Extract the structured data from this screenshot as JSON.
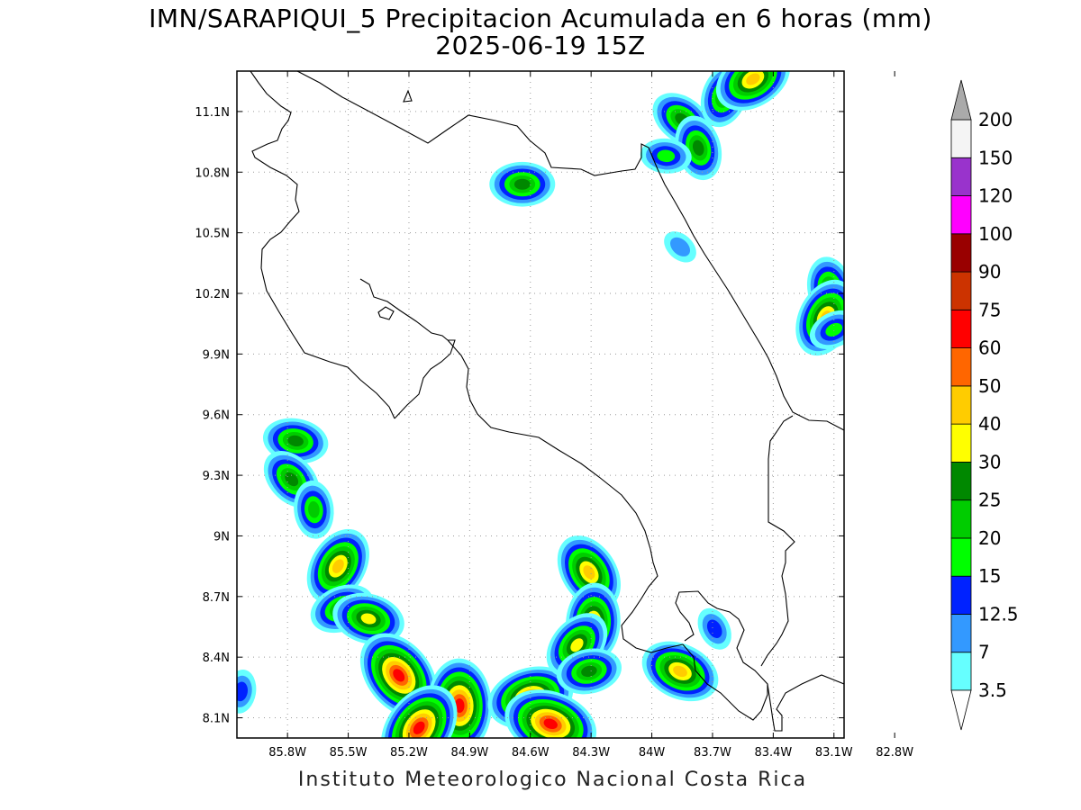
{
  "title": {
    "line1": "IMN/SARAPIQUI_5 Precipitacion Acumulada en 6 horas (mm)",
    "line2": "2025-06-19 15Z"
  },
  "footer": "Instituto Meteorologico Nacional Costa Rica",
  "map": {
    "lon_range": [
      -86.05,
      -83.05
    ],
    "lat_range": [
      8.0,
      11.3
    ],
    "lon_ticks": [
      {
        "value": -85.8,
        "label": "85.8W"
      },
      {
        "value": -85.5,
        "label": "85.5W"
      },
      {
        "value": -85.2,
        "label": "85.2W"
      },
      {
        "value": -84.9,
        "label": "84.9W"
      },
      {
        "value": -84.6,
        "label": "84.6W"
      },
      {
        "value": -84.3,
        "label": "84.3W"
      },
      {
        "value": -84.0,
        "label": "84W"
      },
      {
        "value": -83.7,
        "label": "83.7W"
      },
      {
        "value": -83.4,
        "label": "83.4W"
      },
      {
        "value": -83.1,
        "label": "83.1W"
      },
      {
        "value": -82.8,
        "label": "82.8W"
      }
    ],
    "lat_ticks": [
      {
        "value": 8.1,
        "label": "8.1N"
      },
      {
        "value": 8.4,
        "label": "8.4N"
      },
      {
        "value": 8.7,
        "label": "8.7N"
      },
      {
        "value": 9.0,
        "label": "9N"
      },
      {
        "value": 9.3,
        "label": "9.3N"
      },
      {
        "value": 9.6,
        "label": "9.6N"
      },
      {
        "value": 9.9,
        "label": "9.9N"
      },
      {
        "value": 10.2,
        "label": "10.2N"
      },
      {
        "value": 10.5,
        "label": "10.5N"
      },
      {
        "value": 10.8,
        "label": "10.8N"
      },
      {
        "value": 11.1,
        "label": "11.1N"
      }
    ],
    "grid": true
  },
  "colorbar": {
    "levels": [
      {
        "label": "3.5",
        "color": "#66ffff"
      },
      {
        "label": "7",
        "color": "#3399ff"
      },
      {
        "label": "12.5",
        "color": "#0022ff"
      },
      {
        "label": "15",
        "color": "#00ff00"
      },
      {
        "label": "20",
        "color": "#00cc00"
      },
      {
        "label": "25",
        "color": "#008800"
      },
      {
        "label": "30",
        "color": "#ffff00"
      },
      {
        "label": "40",
        "color": "#ffcc00"
      },
      {
        "label": "50",
        "color": "#ff6600"
      },
      {
        "label": "60",
        "color": "#ff0000"
      },
      {
        "label": "75",
        "color": "#cc3300"
      },
      {
        "label": "90",
        "color": "#990000"
      },
      {
        "label": "100",
        "color": "#ff00ff"
      },
      {
        "label": "120",
        "color": "#9933cc"
      },
      {
        "label": "150",
        "color": "#f4f4f4"
      },
      {
        "label": "200",
        "color": "#aaaaaa"
      }
    ]
  },
  "chart_data": {
    "type": "heatmap",
    "variable": "accumulated precipitation 6h (mm)",
    "cells": [
      {
        "lon": -84.64,
        "lat": 10.74,
        "max_mm": 25
      },
      {
        "lon": -83.85,
        "lat": 11.06,
        "max_mm": 25
      },
      {
        "lon": -83.77,
        "lat": 10.92,
        "max_mm": 25
      },
      {
        "lon": -83.64,
        "lat": 11.18,
        "max_mm": 25
      },
      {
        "lon": -83.5,
        "lat": 11.26,
        "max_mm": 40
      },
      {
        "lon": -83.93,
        "lat": 10.88,
        "max_mm": 15
      },
      {
        "lon": -83.86,
        "lat": 10.43,
        "max_mm": 7
      },
      {
        "lon": -83.12,
        "lat": 10.22,
        "max_mm": 25
      },
      {
        "lon": -83.14,
        "lat": 10.08,
        "max_mm": 40
      },
      {
        "lon": -83.1,
        "lat": 10.02,
        "max_mm": 15
      },
      {
        "lon": -85.76,
        "lat": 9.47,
        "max_mm": 25
      },
      {
        "lon": -85.78,
        "lat": 9.28,
        "max_mm": 25
      },
      {
        "lon": -85.67,
        "lat": 9.13,
        "max_mm": 20
      },
      {
        "lon": -85.55,
        "lat": 8.85,
        "max_mm": 40
      },
      {
        "lon": -85.53,
        "lat": 8.64,
        "max_mm": 25
      },
      {
        "lon": -85.4,
        "lat": 8.59,
        "max_mm": 30
      },
      {
        "lon": -85.25,
        "lat": 8.31,
        "max_mm": 60
      },
      {
        "lon": -84.95,
        "lat": 8.16,
        "max_mm": 60
      },
      {
        "lon": -85.15,
        "lat": 8.05,
        "max_mm": 60
      },
      {
        "lon": -84.6,
        "lat": 8.2,
        "max_mm": 50
      },
      {
        "lon": -84.5,
        "lat": 8.07,
        "max_mm": 60
      },
      {
        "lon": -84.31,
        "lat": 8.82,
        "max_mm": 40
      },
      {
        "lon": -84.29,
        "lat": 8.57,
        "max_mm": 40
      },
      {
        "lon": -84.37,
        "lat": 8.46,
        "max_mm": 30
      },
      {
        "lon": -84.31,
        "lat": 8.33,
        "max_mm": 25
      },
      {
        "lon": -83.86,
        "lat": 8.33,
        "max_mm": 40
      },
      {
        "lon": -83.69,
        "lat": 8.54,
        "max_mm": 12.5
      },
      {
        "lon": -86.03,
        "lat": 8.23,
        "max_mm": 12.5
      }
    ]
  }
}
